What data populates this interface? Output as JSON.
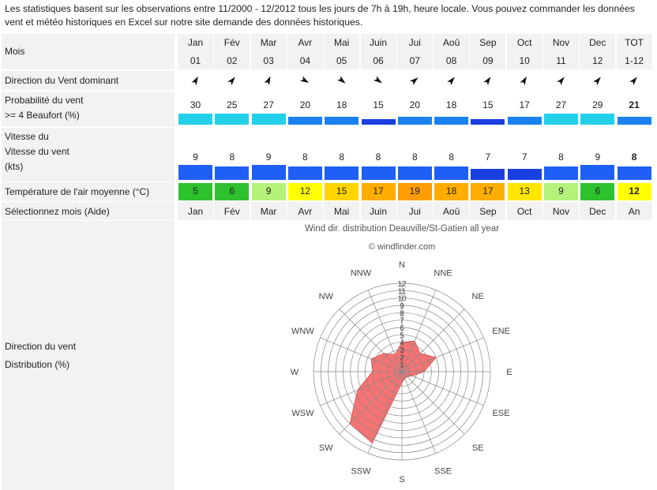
{
  "intro": "Les statistiques basent sur les observations entre 11/2000 - 12/2012 tous les jours de 7h à 19h, heure locale. Vous pouvez commander les données vent et météo historiques en Excel sur notre site demande des données historiques.",
  "labels": {
    "mois": "Mois",
    "direction": "Direction du Vent dominant",
    "prob_1": "Probabilité du vent",
    "prob_2": ">= 4 Beaufort (%)",
    "speed_1": "Vitesse du",
    "speed_2": "Vitesse du vent",
    "speed_3": "(kts)",
    "temp": "Température de l'air moyenne (°C)",
    "select": "Sélectionnez mois (Aide)",
    "dist_1": "Direction du vent",
    "dist_2": "Distribution (%)"
  },
  "months": [
    {
      "name": "Jan",
      "num": "01",
      "dir_deg": 30,
      "prob": "30",
      "prob_level": 2,
      "speed": "9",
      "speed_level": 3,
      "temp": "5",
      "temp_color": "#2dc12d",
      "select": "Jan"
    },
    {
      "name": "Fév",
      "num": "02",
      "dir_deg": 40,
      "prob": "25",
      "prob_level": 2,
      "speed": "8",
      "speed_level": 2,
      "temp": "6",
      "temp_color": "#2dc12d",
      "select": "Fév"
    },
    {
      "name": "Mar",
      "num": "03",
      "dir_deg": 25,
      "prob": "27",
      "prob_level": 2,
      "speed": "9",
      "speed_level": 3,
      "temp": "9",
      "temp_color": "#b4f27a",
      "select": "Mar"
    },
    {
      "name": "Avr",
      "num": "04",
      "dir_deg": 120,
      "prob": "20",
      "prob_level": 1,
      "speed": "8",
      "speed_level": 2,
      "temp": "12",
      "temp_color": "#ffff00",
      "select": "Avr"
    },
    {
      "name": "Mai",
      "num": "05",
      "dir_deg": 130,
      "prob": "18",
      "prob_level": 1,
      "speed": "8",
      "speed_level": 2,
      "temp": "15",
      "temp_color": "#ffd400",
      "select": "Mai"
    },
    {
      "name": "Juin",
      "num": "06",
      "dir_deg": 125,
      "prob": "15",
      "prob_level": 0,
      "speed": "8",
      "speed_level": 2,
      "temp": "17",
      "temp_color": "#ffad00",
      "select": "Juin"
    },
    {
      "name": "Jui",
      "num": "07",
      "dir_deg": 50,
      "prob": "20",
      "prob_level": 1,
      "speed": "8",
      "speed_level": 2,
      "temp": "19",
      "temp_color": "#ff9c00",
      "select": "Jui"
    },
    {
      "name": "Aoû",
      "num": "08",
      "dir_deg": 40,
      "prob": "18",
      "prob_level": 1,
      "speed": "8",
      "speed_level": 2,
      "temp": "18",
      "temp_color": "#ffad00",
      "select": "Aoû"
    },
    {
      "name": "Sep",
      "num": "09",
      "dir_deg": 35,
      "prob": "15",
      "prob_level": 0,
      "speed": "7",
      "speed_level": 1,
      "temp": "17",
      "temp_color": "#ffad00",
      "select": "Sep"
    },
    {
      "name": "Oct",
      "num": "10",
      "dir_deg": 30,
      "prob": "17",
      "prob_level": 1,
      "speed": "7",
      "speed_level": 1,
      "temp": "13",
      "temp_color": "#ffe600",
      "select": "Oct"
    },
    {
      "name": "Nov",
      "num": "11",
      "dir_deg": 40,
      "prob": "27",
      "prob_level": 2,
      "speed": "8",
      "speed_level": 2,
      "temp": "9",
      "temp_color": "#b4f27a",
      "select": "Nov"
    },
    {
      "name": "Dec",
      "num": "12",
      "dir_deg": 40,
      "prob": "29",
      "prob_level": 2,
      "speed": "9",
      "speed_level": 3,
      "temp": "6",
      "temp_color": "#2dc12d",
      "select": "Dec"
    },
    {
      "name": "TOT",
      "num": "1-12",
      "dir_deg": 40,
      "prob": "21",
      "prob_level": 1,
      "speed": "8",
      "speed_level": 2,
      "temp": "12",
      "temp_color": "#ffff00",
      "select": "An",
      "bold": true
    }
  ],
  "colors": {
    "prob_levels": [
      "#1a3fe0",
      "#1a82f0",
      "#22d0ea"
    ],
    "speed_levels": [
      "#1028d0",
      "#1a3fe0",
      "#1f5ff5",
      "#1f5ff5"
    ]
  },
  "rose": {
    "title": "Wind dir. distribution Deauville/St-Gatien all year",
    "credit": "© windfinder.com",
    "directions": [
      "N",
      "NNE",
      "NE",
      "ENE",
      "E",
      "ESE",
      "SE",
      "SSE",
      "S",
      "SSW",
      "SW",
      "WSW",
      "W",
      "WNW",
      "NW",
      "NNW"
    ],
    "values": [
      4,
      4.5,
      3.5,
      5,
      3,
      1.5,
      1,
      1,
      1.5,
      10.5,
      10,
      6.5,
      4,
      4.5,
      3.5,
      2.5
    ],
    "rings": [
      "1",
      "2",
      "3",
      "4",
      "5",
      "6",
      "7",
      "8",
      "9",
      "10",
      "11",
      "12"
    ],
    "max": 12,
    "fill": "#f55a5a"
  }
}
